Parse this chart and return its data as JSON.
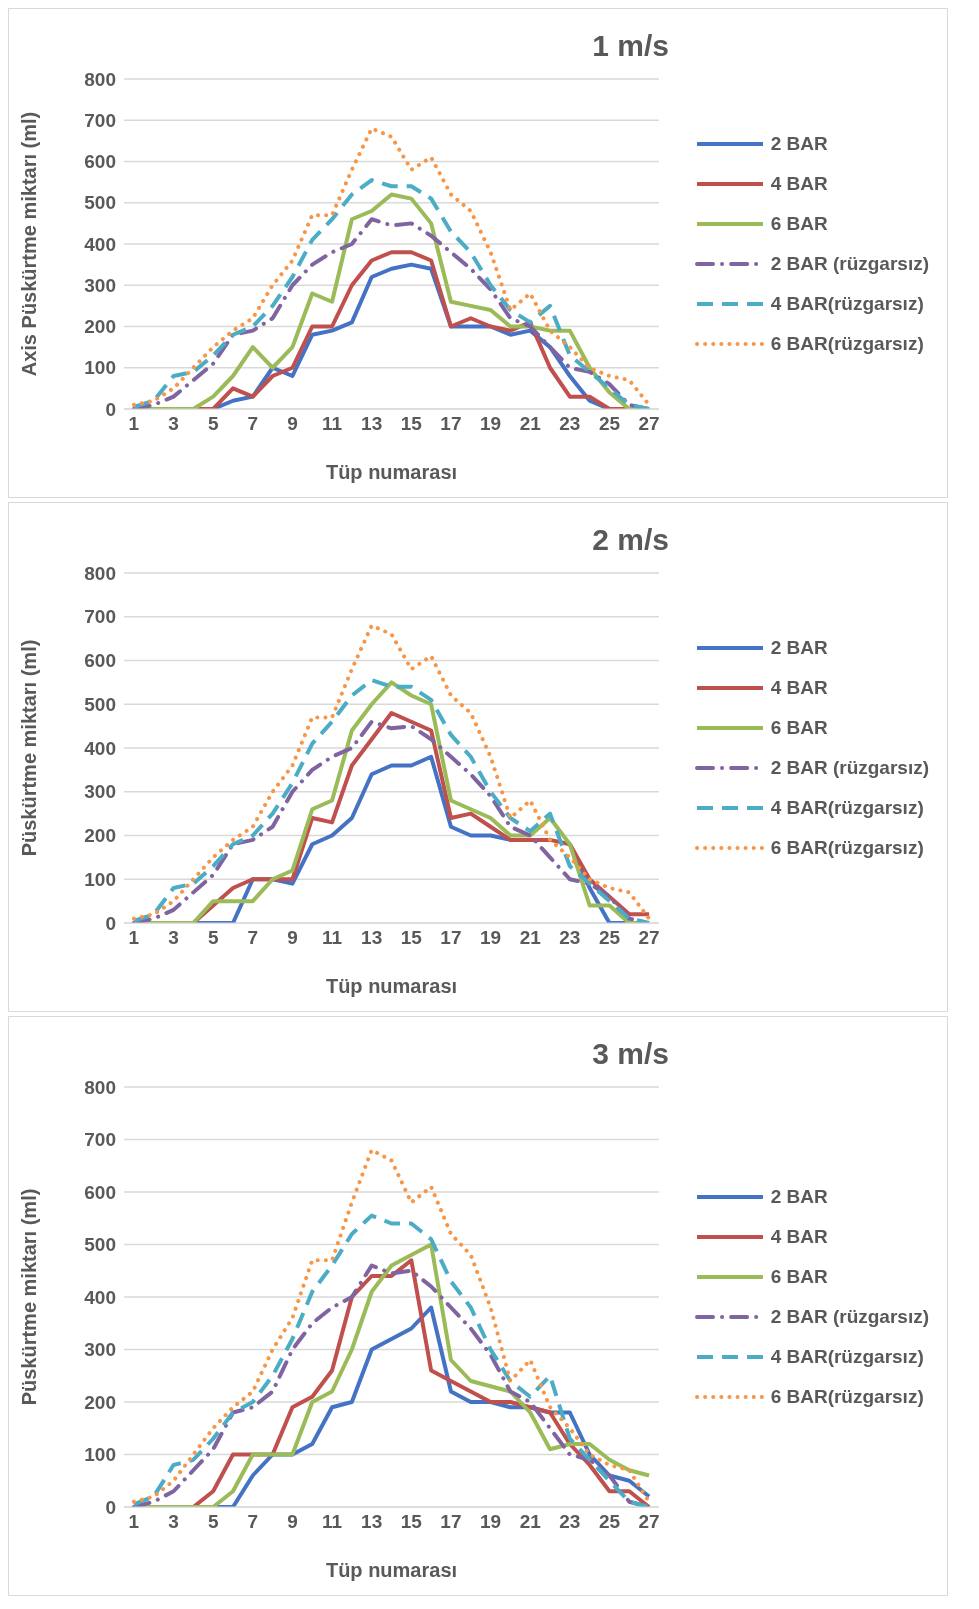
{
  "chart_data": [
    {
      "type": "line",
      "title": "1 m/s",
      "xlabel": "Tüp numarası",
      "ylabel": "Axis Püskürtme miktarı (ml)",
      "x": [
        1,
        2,
        3,
        4,
        5,
        6,
        7,
        8,
        9,
        10,
        11,
        12,
        13,
        14,
        15,
        16,
        17,
        18,
        19,
        20,
        21,
        22,
        23,
        24,
        25,
        26,
        27
      ],
      "xlim": [
        0.5,
        27.5
      ],
      "xticks": [
        1,
        3,
        5,
        7,
        9,
        11,
        13,
        15,
        17,
        19,
        21,
        23,
        25,
        27
      ],
      "ylim": [
        0,
        800
      ],
      "yticks": [
        0,
        100,
        200,
        300,
        400,
        500,
        600,
        700,
        800
      ],
      "grid": "y",
      "legend": "right",
      "marker": "none",
      "series": [
        {
          "name": "2 BAR",
          "color": "#4472c4",
          "line_style": "solid",
          "values": [
            0,
            0,
            0,
            0,
            0,
            20,
            30,
            100,
            80,
            180,
            190,
            210,
            320,
            340,
            350,
            340,
            200,
            200,
            200,
            180,
            190,
            150,
            80,
            20,
            0,
            0,
            0
          ]
        },
        {
          "name": "4 BAR",
          "color": "#c0504d",
          "line_style": "solid",
          "values": [
            null,
            null,
            0,
            0,
            0,
            50,
            30,
            80,
            100,
            200,
            200,
            300,
            360,
            380,
            380,
            360,
            200,
            220,
            200,
            190,
            210,
            100,
            30,
            30,
            0,
            0,
            0
          ]
        },
        {
          "name": "6 BAR",
          "color": "#9bbb59",
          "line_style": "solid",
          "values": [
            0,
            0,
            0,
            0,
            30,
            80,
            150,
            100,
            150,
            280,
            260,
            460,
            480,
            520,
            510,
            450,
            260,
            250,
            240,
            200,
            200,
            190,
            190,
            100,
            40,
            0,
            0
          ]
        },
        {
          "name": "2 BAR (rüzgarsız)",
          "color": "#8064a2",
          "line_style": "dashdot",
          "values": [
            0,
            10,
            30,
            70,
            110,
            180,
            190,
            220,
            300,
            350,
            380,
            400,
            460,
            445,
            450,
            420,
            380,
            340,
            290,
            220,
            200,
            150,
            100,
            90,
            60,
            10,
            0
          ]
        },
        {
          "name": "4 BAR(rüzgarsız)",
          "color": "#4bacc6",
          "line_style": "dashed",
          "values": [
            5,
            20,
            80,
            90,
            130,
            180,
            200,
            250,
            320,
            410,
            460,
            520,
            555,
            540,
            540,
            510,
            430,
            380,
            300,
            240,
            210,
            250,
            130,
            90,
            50,
            10,
            0
          ]
        },
        {
          "name": "6 BAR(rüzgarsız)",
          "color": "#f79646",
          "line_style": "dotted",
          "values": [
            10,
            20,
            50,
            100,
            150,
            190,
            220,
            300,
            360,
            470,
            470,
            580,
            680,
            660,
            580,
            610,
            520,
            480,
            380,
            240,
            280,
            190,
            150,
            100,
            80,
            70,
            10
          ]
        }
      ]
    },
    {
      "type": "line",
      "title": "2 m/s",
      "xlabel": "Tüp numarası",
      "ylabel": "Püskürtme miktarı (ml)",
      "x": [
        1,
        2,
        3,
        4,
        5,
        6,
        7,
        8,
        9,
        10,
        11,
        12,
        13,
        14,
        15,
        16,
        17,
        18,
        19,
        20,
        21,
        22,
        23,
        24,
        25,
        26,
        27
      ],
      "xlim": [
        0.5,
        27.5
      ],
      "xticks": [
        1,
        3,
        5,
        7,
        9,
        11,
        13,
        15,
        17,
        19,
        21,
        23,
        25,
        27
      ],
      "ylim": [
        0,
        800
      ],
      "yticks": [
        0,
        100,
        200,
        300,
        400,
        500,
        600,
        700,
        800
      ],
      "grid": "y",
      "legend": "right",
      "marker": "none",
      "series": [
        {
          "name": "2 BAR",
          "color": "#4472c4",
          "line_style": "solid",
          "values": [
            0,
            0,
            0,
            0,
            0,
            0,
            100,
            100,
            90,
            180,
            200,
            240,
            340,
            360,
            360,
            380,
            220,
            200,
            200,
            190,
            190,
            null,
            180,
            80,
            0,
            0,
            0
          ]
        },
        {
          "name": "4 BAR",
          "color": "#c0504d",
          "line_style": "solid",
          "values": [
            null,
            null,
            0,
            0,
            40,
            80,
            100,
            100,
            100,
            240,
            230,
            360,
            420,
            480,
            460,
            440,
            240,
            250,
            220,
            190,
            190,
            190,
            180,
            100,
            60,
            20,
            20
          ]
        },
        {
          "name": "6 BAR",
          "color": "#9bbb59",
          "line_style": "solid",
          "values": [
            0,
            0,
            0,
            0,
            50,
            50,
            50,
            100,
            120,
            260,
            280,
            440,
            500,
            550,
            520,
            500,
            280,
            260,
            240,
            200,
            200,
            240,
            180,
            40,
            40,
            0,
            0
          ]
        },
        {
          "name": "2 BAR (rüzgarsız)",
          "color": "#8064a2",
          "line_style": "dashdot",
          "values": [
            0,
            10,
            30,
            70,
            110,
            180,
            190,
            220,
            300,
            350,
            380,
            400,
            460,
            445,
            450,
            420,
            380,
            340,
            290,
            220,
            200,
            150,
            100,
            90,
            60,
            10,
            0
          ]
        },
        {
          "name": "4 BAR(rüzgarsız)",
          "color": "#4bacc6",
          "line_style": "dashed",
          "values": [
            5,
            20,
            80,
            90,
            130,
            180,
            200,
            250,
            320,
            410,
            460,
            520,
            555,
            540,
            540,
            510,
            430,
            380,
            300,
            240,
            210,
            250,
            130,
            90,
            50,
            10,
            0
          ]
        },
        {
          "name": "6 BAR(rüzgarsız)",
          "color": "#f79646",
          "line_style": "dotted",
          "values": [
            10,
            20,
            50,
            100,
            150,
            190,
            220,
            300,
            360,
            470,
            470,
            580,
            680,
            660,
            580,
            610,
            520,
            480,
            380,
            240,
            280,
            190,
            150,
            100,
            80,
            70,
            10
          ]
        }
      ]
    },
    {
      "type": "line",
      "title": "3 m/s",
      "xlabel": "Tüp numarası",
      "ylabel": "Püskürtme miktarı (ml)",
      "x": [
        1,
        2,
        3,
        4,
        5,
        6,
        7,
        8,
        9,
        10,
        11,
        12,
        13,
        14,
        15,
        16,
        17,
        18,
        19,
        20,
        21,
        22,
        23,
        24,
        25,
        26,
        27
      ],
      "xlim": [
        0.5,
        27.5
      ],
      "xticks": [
        1,
        3,
        5,
        7,
        9,
        11,
        13,
        15,
        17,
        19,
        21,
        23,
        25,
        27
      ],
      "ylim": [
        0,
        800
      ],
      "yticks": [
        0,
        100,
        200,
        300,
        400,
        500,
        600,
        700,
        800
      ],
      "grid": "y",
      "legend": "right",
      "marker": "none",
      "series": [
        {
          "name": "2 BAR",
          "color": "#4472c4",
          "line_style": "solid",
          "values": [
            0,
            0,
            0,
            0,
            0,
            0,
            60,
            100,
            100,
            120,
            190,
            200,
            300,
            320,
            340,
            380,
            220,
            200,
            200,
            190,
            190,
            180,
            180,
            100,
            60,
            50,
            20
          ]
        },
        {
          "name": "4 BAR",
          "color": "#c0504d",
          "line_style": "solid",
          "values": [
            null,
            null,
            0,
            0,
            30,
            100,
            100,
            100,
            190,
            210,
            260,
            400,
            440,
            440,
            470,
            260,
            240,
            220,
            200,
            200,
            190,
            180,
            120,
            80,
            30,
            30,
            0
          ]
        },
        {
          "name": "6 BAR",
          "color": "#9bbb59",
          "line_style": "solid",
          "values": [
            0,
            0,
            0,
            0,
            0,
            30,
            100,
            100,
            100,
            200,
            220,
            300,
            410,
            460,
            480,
            500,
            280,
            240,
            230,
            220,
            180,
            110,
            120,
            120,
            90,
            70,
            60
          ]
        },
        {
          "name": "2 BAR (rüzgarsız)",
          "color": "#8064a2",
          "line_style": "dashdot",
          "values": [
            0,
            10,
            30,
            70,
            110,
            180,
            190,
            220,
            300,
            350,
            380,
            400,
            460,
            445,
            450,
            420,
            380,
            340,
            290,
            220,
            200,
            150,
            100,
            90,
            60,
            10,
            0
          ]
        },
        {
          "name": "4 BAR(rüzgarsız)",
          "color": "#4bacc6",
          "line_style": "dashed",
          "values": [
            5,
            20,
            80,
            90,
            130,
            180,
            200,
            250,
            320,
            410,
            460,
            520,
            555,
            540,
            540,
            510,
            430,
            380,
            300,
            240,
            210,
            250,
            130,
            90,
            50,
            10,
            0
          ]
        },
        {
          "name": "6 BAR(rüzgarsız)",
          "color": "#f79646",
          "line_style": "dotted",
          "values": [
            10,
            20,
            50,
            100,
            150,
            190,
            220,
            300,
            360,
            470,
            470,
            580,
            680,
            660,
            580,
            610,
            520,
            480,
            380,
            240,
            280,
            190,
            150,
            100,
            80,
            70,
            10
          ]
        }
      ]
    }
  ]
}
